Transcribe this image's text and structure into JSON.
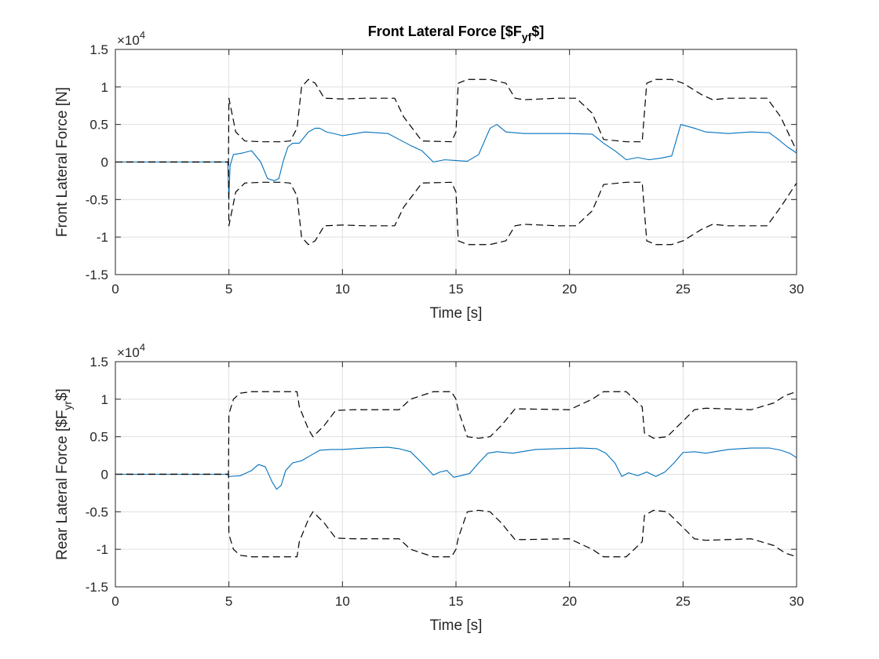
{
  "chart_data": [
    {
      "type": "line",
      "title_main": "Front Lateral Force [$F",
      "title_sub": "yf",
      "title_end": "$]",
      "xlabel": "Time [s]",
      "ylabel": "Front Lateral Force [N]",
      "ylabel_main": "Front Lateral Force [N]",
      "ylabel_sub": "",
      "ylabel_end": "",
      "xlim": [
        0,
        30
      ],
      "ylim": [
        -15000,
        15000
      ],
      "xticks": [
        "0",
        "5",
        "10",
        "15",
        "20",
        "25",
        "30"
      ],
      "yticks": [
        "-1.5",
        "-1",
        "-0.5",
        "0",
        "0.5",
        "1",
        "1.5"
      ],
      "exponent_label": "×10",
      "exponent_power": "4",
      "grid": true,
      "colors": {
        "signal": "#0072BD",
        "bounds": "#000000"
      },
      "series": [
        {
          "style": "solid",
          "x": [
            0,
            4.95,
            5.0,
            5.05,
            5.2,
            5.6,
            6.0,
            6.4,
            6.7,
            7.0,
            7.2,
            7.4,
            7.6,
            7.8,
            8.1,
            8.5,
            8.8,
            9.0,
            9.3,
            9.6,
            10.0,
            11.0,
            12.0,
            12.5,
            13.0,
            13.5,
            14.0,
            14.5,
            15.0,
            15.5,
            16.0,
            16.5,
            16.8,
            17.2,
            18.0,
            19.0,
            20.0,
            21.0,
            21.5,
            22.0,
            22.5,
            23.0,
            23.5,
            24.0,
            24.5,
            24.9,
            25.5,
            26.0,
            27.0,
            28.0,
            28.8,
            29.2,
            29.6,
            30.0
          ],
          "y": [
            0,
            0,
            -5000,
            -500,
            1000,
            1200,
            1500,
            0,
            -2200,
            -2500,
            -2200,
            200,
            2000,
            2500,
            2500,
            4000,
            4500,
            4500,
            4000,
            3800,
            3500,
            4000,
            3800,
            3000,
            2200,
            1500,
            0,
            300,
            200,
            100,
            1000,
            4500,
            5000,
            4000,
            3800,
            3800,
            3800,
            3700,
            2500,
            1500,
            300,
            600,
            300,
            500,
            800,
            5000,
            4500,
            4000,
            3800,
            4000,
            3900,
            3000,
            2000,
            1200
          ]
        },
        {
          "style": "dashed",
          "x": [
            0,
            4.98,
            5.0,
            5.3,
            5.7,
            6.5,
            7.3,
            7.7,
            8.0,
            8.2,
            8.5,
            8.8,
            9.2,
            10.0,
            11.0,
            12.3,
            12.7,
            13.5,
            14.8,
            15.0,
            15.1,
            15.5,
            16.0,
            16.5,
            17.2,
            17.6,
            18.0,
            19.5,
            20.3,
            21.0,
            21.5,
            22.5,
            23.2,
            23.4,
            23.8,
            24.5,
            25.0,
            25.8,
            26.3,
            27.0,
            28.7,
            29.3,
            30.0
          ],
          "y": [
            0,
            0,
            8500,
            4000,
            2800,
            2700,
            2700,
            2800,
            4500,
            10000,
            11000,
            10500,
            8500,
            8400,
            8500,
            8500,
            6000,
            2800,
            2700,
            4000,
            10500,
            11000,
            11000,
            11000,
            10500,
            8500,
            8300,
            8500,
            8500,
            6500,
            3000,
            2700,
            2700,
            10500,
            11000,
            11000,
            10500,
            9000,
            8300,
            8500,
            8500,
            6000,
            1500
          ]
        },
        {
          "style": "dashed",
          "x": [
            0,
            4.98,
            5.0,
            5.3,
            5.7,
            6.5,
            7.3,
            7.7,
            8.0,
            8.2,
            8.5,
            8.8,
            9.2,
            10.0,
            11.0,
            12.3,
            12.7,
            13.5,
            14.8,
            15.0,
            15.1,
            15.5,
            16.0,
            16.5,
            17.2,
            17.6,
            18.0,
            19.5,
            20.3,
            21.0,
            21.5,
            22.5,
            23.2,
            23.4,
            23.8,
            24.5,
            25.0,
            25.8,
            26.3,
            27.0,
            28.7,
            29.3,
            30.0
          ],
          "y": [
            0,
            0,
            -8500,
            -4000,
            -2800,
            -2700,
            -2700,
            -2800,
            -4500,
            -10000,
            -11000,
            -10500,
            -8500,
            -8400,
            -8500,
            -8500,
            -6000,
            -2800,
            -2700,
            -4000,
            -10500,
            -11000,
            -11000,
            -11000,
            -10500,
            -8500,
            -8300,
            -8500,
            -8500,
            -6500,
            -3000,
            -2700,
            -2700,
            -10500,
            -11000,
            -11000,
            -10500,
            -9000,
            -8300,
            -8500,
            -8500,
            -6000,
            -2800
          ]
        }
      ]
    },
    {
      "type": "line",
      "title_main": "",
      "title_sub": "",
      "title_end": "",
      "xlabel": "Time [s]",
      "ylabel": "Rear Lateral Force [$F_yr $]",
      "ylabel_main": "Rear Lateral Force [$F",
      "ylabel_sub": "yr",
      "ylabel_end": "$]",
      "xlim": [
        0,
        30
      ],
      "ylim": [
        -15000,
        15000
      ],
      "xticks": [
        "0",
        "5",
        "10",
        "15",
        "20",
        "25",
        "30"
      ],
      "yticks": [
        "-1.5",
        "-1",
        "-0.5",
        "0",
        "0.5",
        "1",
        "1.5"
      ],
      "exponent_label": "×10",
      "exponent_power": "4",
      "grid": true,
      "colors": {
        "signal": "#0072BD",
        "bounds": "#000000"
      },
      "series": [
        {
          "style": "solid",
          "x": [
            0,
            4.95,
            5.0,
            5.5,
            6.0,
            6.3,
            6.6,
            6.9,
            7.1,
            7.3,
            7.5,
            7.8,
            8.2,
            8.6,
            9.0,
            9.5,
            10.0,
            11.0,
            12.0,
            12.5,
            13.0,
            13.5,
            14.0,
            14.3,
            14.6,
            14.9,
            15.2,
            15.6,
            16.0,
            16.4,
            16.8,
            17.5,
            18.5,
            19.5,
            20.5,
            21.2,
            21.6,
            22.0,
            22.3,
            22.6,
            23.0,
            23.4,
            23.8,
            24.2,
            24.6,
            25.0,
            25.5,
            26.0,
            27.0,
            28.0,
            28.8,
            29.3,
            29.7,
            30.0
          ],
          "y": [
            0,
            0,
            -300,
            -200,
            500,
            1300,
            1000,
            -1000,
            -2000,
            -1500,
            500,
            1500,
            1800,
            2500,
            3200,
            3300,
            3300,
            3500,
            3600,
            3400,
            3000,
            1500,
            -100,
            300,
            500,
            -400,
            -200,
            100,
            1500,
            2800,
            3000,
            2800,
            3300,
            3400,
            3500,
            3400,
            2800,
            1500,
            -300,
            200,
            -200,
            300,
            -300,
            300,
            1500,
            2900,
            3000,
            2800,
            3300,
            3500,
            3500,
            3200,
            2800,
            2200
          ]
        },
        {
          "style": "dashed",
          "x": [
            0,
            4.98,
            5.0,
            5.2,
            5.5,
            6.0,
            7.0,
            8.0,
            8.1,
            8.5,
            8.7,
            9.2,
            9.7,
            10.5,
            12.5,
            13.0,
            14.0,
            14.8,
            15.0,
            15.1,
            15.5,
            16.0,
            16.5,
            17.0,
            17.6,
            18.0,
            20.0,
            21.0,
            21.5,
            22.5,
            23.2,
            23.3,
            23.7,
            24.3,
            24.8,
            25.5,
            26.0,
            28.0,
            29.0,
            29.5,
            30.0
          ],
          "y": [
            0,
            0,
            8000,
            10000,
            10800,
            11000,
            11000,
            11000,
            9000,
            6000,
            5000,
            6500,
            8500,
            8600,
            8600,
            10000,
            11000,
            11000,
            10000,
            8500,
            5000,
            4800,
            5000,
            6500,
            8700,
            8700,
            8600,
            10000,
            11000,
            11000,
            9000,
            5500,
            4800,
            5000,
            6500,
            8600,
            8800,
            8600,
            9500,
            10500,
            11000
          ]
        },
        {
          "style": "dashed",
          "x": [
            0,
            4.98,
            5.0,
            5.2,
            5.5,
            6.0,
            7.0,
            8.0,
            8.1,
            8.5,
            8.7,
            9.2,
            9.7,
            10.5,
            12.5,
            13.0,
            14.0,
            14.8,
            15.0,
            15.1,
            15.5,
            16.0,
            16.5,
            17.0,
            17.6,
            18.0,
            20.0,
            21.0,
            21.5,
            22.5,
            23.2,
            23.3,
            23.7,
            24.3,
            24.8,
            25.5,
            26.0,
            28.0,
            29.0,
            29.5,
            30.0
          ],
          "y": [
            0,
            0,
            -8000,
            -10000,
            -10800,
            -11000,
            -11000,
            -11000,
            -9000,
            -6000,
            -5000,
            -6500,
            -8500,
            -8600,
            -8600,
            -10000,
            -11000,
            -11000,
            -10000,
            -8500,
            -5000,
            -4800,
            -5000,
            -6500,
            -8700,
            -8700,
            -8600,
            -10000,
            -11000,
            -11000,
            -9000,
            -5500,
            -4800,
            -5000,
            -6500,
            -8600,
            -8800,
            -8600,
            -9500,
            -10500,
            -11000
          ]
        }
      ]
    }
  ]
}
